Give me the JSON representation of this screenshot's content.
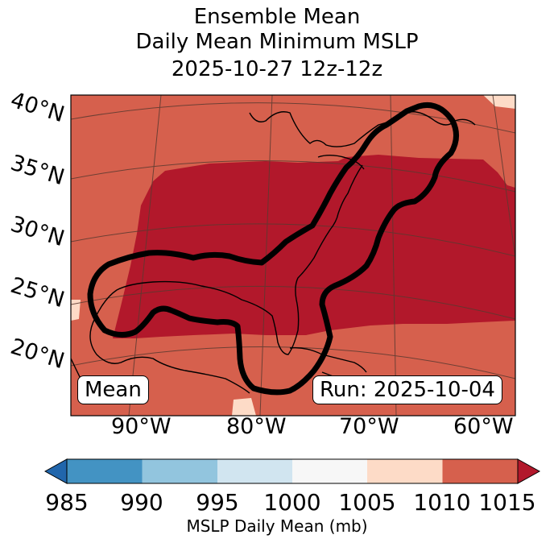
{
  "title": {
    "line1": "Ensemble Mean",
    "line2": "Daily Mean Minimum MSLP",
    "line3": "2025-10-27 12z-12z"
  },
  "map": {
    "latitude_labels": [
      "40°N",
      "35°N",
      "30°N",
      "25°N",
      "20°N"
    ],
    "longitude_labels": [
      "90°W",
      "80°W",
      "70°W",
      "60°W"
    ],
    "mean_label": "Mean",
    "run_label": "Run: 2025-10-04",
    "contour_color": "#000000",
    "land_color": "#d6604d",
    "low_pressure_color": "#b2182b"
  },
  "colorbar": {
    "label": "MSLP Daily Mean (mb)",
    "ticks": [
      "985",
      "990",
      "995",
      "1000",
      "1005",
      "1010",
      "1015"
    ],
    "colors": [
      "#2166ac",
      "#4393c3",
      "#92c5de",
      "#d1e5f0",
      "#f7f7f7",
      "#fddbc7",
      "#d6604d",
      "#b2182b"
    ]
  }
}
